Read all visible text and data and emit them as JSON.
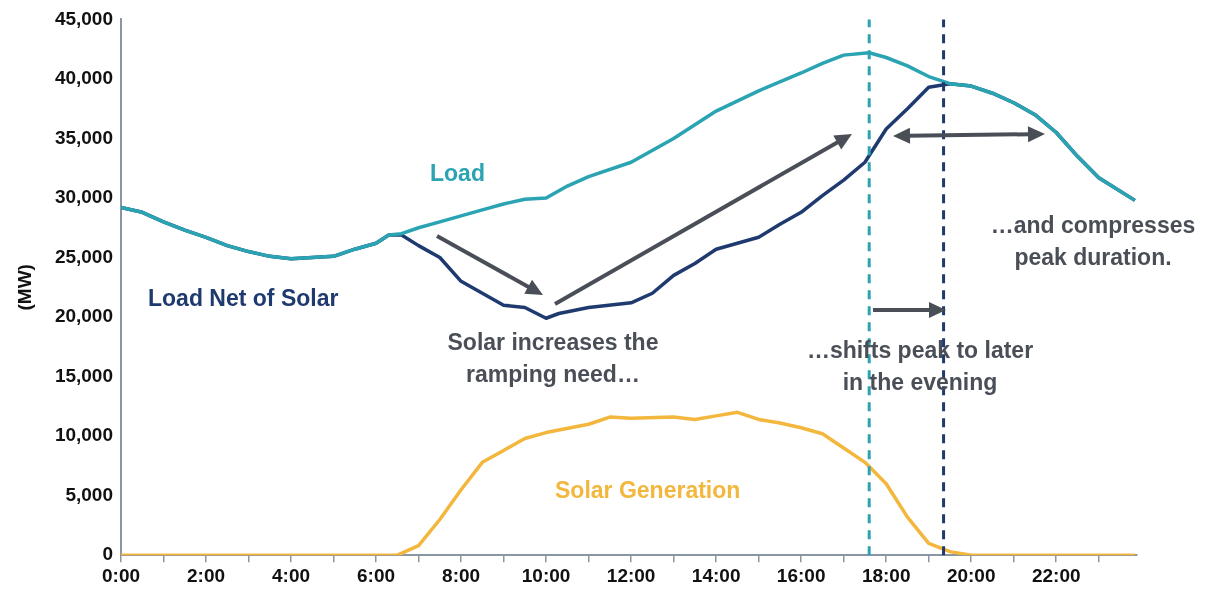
{
  "chart_data": {
    "type": "line",
    "ylabel": "(MW)",
    "xlim": [
      0,
      23.9
    ],
    "ylim": [
      0,
      45000
    ],
    "xticks": [
      {
        "value": 0,
        "label": "0:00"
      },
      {
        "value": 1,
        "label": null
      },
      {
        "value": 2,
        "label": "2:00"
      },
      {
        "value": 3,
        "label": null
      },
      {
        "value": 4,
        "label": "4:00"
      },
      {
        "value": 5,
        "label": null
      },
      {
        "value": 6,
        "label": "6:00"
      },
      {
        "value": 7,
        "label": null
      },
      {
        "value": 8,
        "label": "8:00"
      },
      {
        "value": 9,
        "label": null
      },
      {
        "value": 10,
        "label": "10:00"
      },
      {
        "value": 11,
        "label": null
      },
      {
        "value": 12,
        "label": "12:00"
      },
      {
        "value": 13,
        "label": null
      },
      {
        "value": 14,
        "label": "14:00"
      },
      {
        "value": 15,
        "label": null
      },
      {
        "value": 16,
        "label": "16:00"
      },
      {
        "value": 17,
        "label": null
      },
      {
        "value": 18,
        "label": "18:00"
      },
      {
        "value": 19,
        "label": null
      },
      {
        "value": 20,
        "label": "20:00"
      },
      {
        "value": 21,
        "label": null
      },
      {
        "value": 22,
        "label": "22:00"
      },
      {
        "value": 23,
        "label": null
      }
    ],
    "yticks": [
      {
        "value": 0,
        "label": "0"
      },
      {
        "value": 5000,
        "label": "5,000"
      },
      {
        "value": 10000,
        "label": "10,000"
      },
      {
        "value": 15000,
        "label": "15,000"
      },
      {
        "value": 20000,
        "label": "20,000"
      },
      {
        "value": 25000,
        "label": "25,000"
      },
      {
        "value": 30000,
        "label": "30,000"
      },
      {
        "value": 35000,
        "label": "35,000"
      },
      {
        "value": 40000,
        "label": "40,000"
      },
      {
        "value": 45000,
        "label": "45,000"
      }
    ],
    "grid": false,
    "legend": false,
    "marker": "none",
    "line_style": "solid",
    "series": [
      {
        "name": "Load",
        "color": "#2aa3b3",
        "x": [
          0,
          0.5,
          1,
          1.5,
          2,
          2.5,
          3,
          3.5,
          4,
          4.5,
          5,
          5.5,
          6,
          6.3,
          6.6,
          7,
          7.5,
          8,
          8.5,
          9,
          9.5,
          10,
          10.5,
          11,
          12,
          13,
          14,
          15,
          16,
          16.5,
          17,
          17.6,
          18,
          18.5,
          19,
          19.5,
          20,
          20.5,
          21,
          21.5,
          22,
          22.5,
          23,
          23.85
        ],
        "values": [
          29200,
          28800,
          28000,
          27300,
          26700,
          26000,
          25500,
          25100,
          24900,
          25000,
          25100,
          25700,
          26200,
          26900,
          27000,
          27500,
          28000,
          28500,
          29000,
          29500,
          29900,
          30000,
          31000,
          31800,
          33000,
          35000,
          37300,
          39000,
          40500,
          41300,
          42000,
          42200,
          41800,
          41100,
          40200,
          39600,
          39400,
          38800,
          38000,
          37000,
          35500,
          33500,
          31700,
          29800
        ]
      },
      {
        "name": "Load Net of Solar",
        "color": "#1f3a6e",
        "x": [
          0,
          0.5,
          1,
          1.5,
          2,
          2.5,
          3,
          3.5,
          4,
          4.5,
          5,
          5.5,
          6,
          6.3,
          6.6,
          7,
          7.5,
          8,
          8.5,
          9,
          9.5,
          10,
          10.3,
          11,
          12,
          12.5,
          13,
          13.5,
          14,
          14.5,
          15,
          15.5,
          16,
          16.5,
          17,
          17.5,
          18,
          18.5,
          19,
          19.5,
          20,
          20.5,
          21,
          21.5,
          22,
          22.5,
          23,
          23.85
        ],
        "values": [
          29200,
          28800,
          28000,
          27300,
          26700,
          26000,
          25500,
          25100,
          24900,
          25000,
          25100,
          25700,
          26200,
          26900,
          26900,
          26000,
          25000,
          23000,
          22000,
          21000,
          20800,
          19900,
          20300,
          20800,
          21200,
          22000,
          23500,
          24500,
          25700,
          26200,
          26700,
          27800,
          28800,
          30200,
          31500,
          33000,
          35800,
          37500,
          39300,
          39600,
          39400,
          38800,
          38000,
          37000,
          35500,
          33500,
          31700,
          29800
        ]
      },
      {
        "name": "Solar Generation",
        "color": "#f2b73c",
        "x": [
          0,
          6.5,
          7,
          7.5,
          8,
          8.5,
          9,
          9.5,
          10,
          11,
          11.5,
          12,
          13,
          13.5,
          14,
          14.5,
          15,
          15.5,
          16,
          16.5,
          17,
          17.5,
          18,
          18.5,
          19,
          19.5,
          20,
          23.85
        ],
        "values": [
          0,
          0,
          800,
          3000,
          5500,
          7800,
          8800,
          9800,
          10300,
          11000,
          11600,
          11500,
          11600,
          11400,
          11700,
          12000,
          11400,
          11100,
          10700,
          10200,
          9000,
          7800,
          6000,
          3200,
          1000,
          300,
          0,
          0
        ]
      }
    ],
    "ref_lines": [
      {
        "axis": "x",
        "value": 17.6,
        "color": "#2aa3b3",
        "line_style": "dashed"
      },
      {
        "axis": "x",
        "value": 19.35,
        "color": "#1f3a6e",
        "line_style": "dashed"
      }
    ],
    "annotations": [
      "Solar increases the ramping need…",
      "…shifts peak to later in the evening",
      "…and compresses peak duration."
    ]
  }
}
